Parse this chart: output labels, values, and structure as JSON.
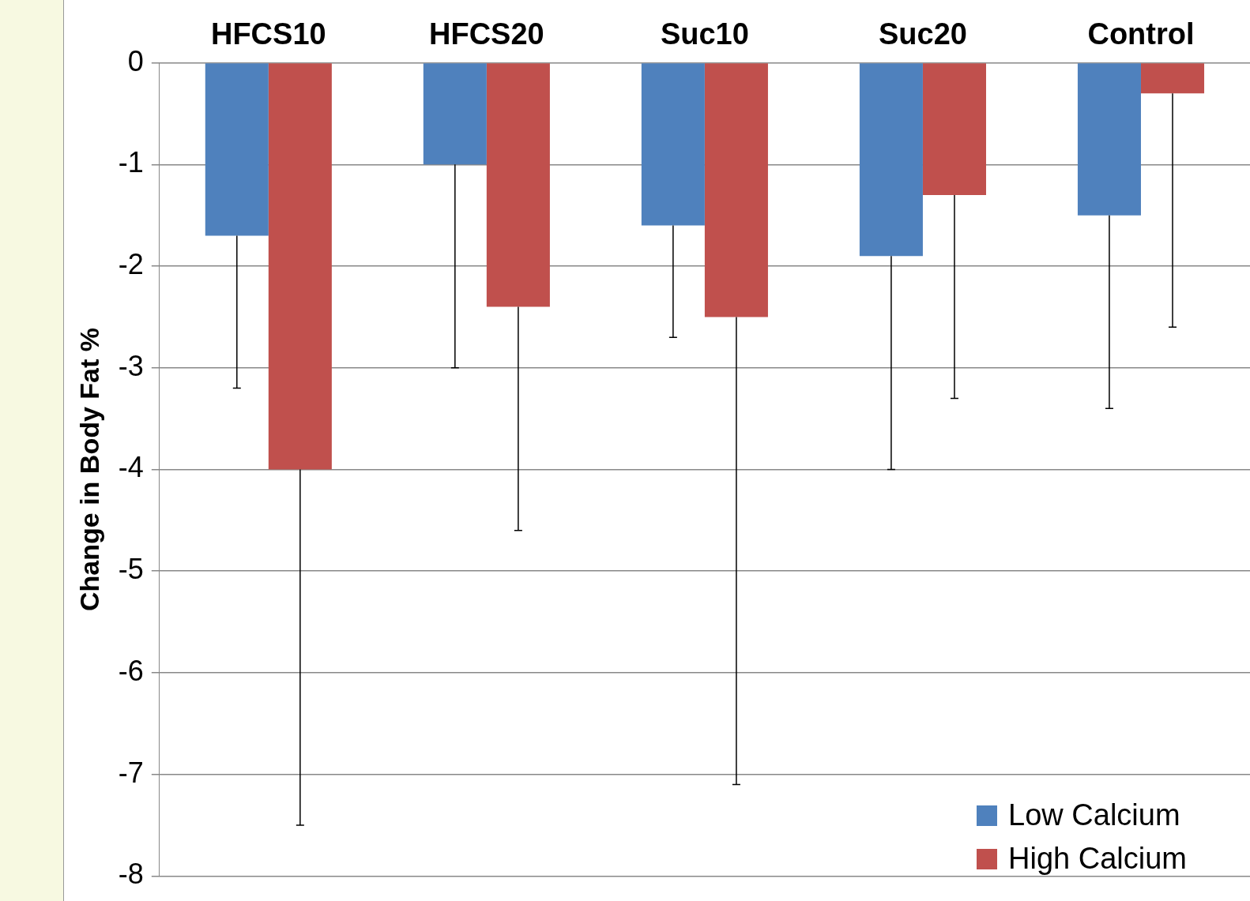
{
  "chart_data": {
    "type": "bar",
    "ylabel": "Change in Body Fat %",
    "categories": [
      "HFCS10",
      "HFCS20",
      "Suc10",
      "Suc20",
      "Control"
    ],
    "series": [
      {
        "name": "Low Calcium",
        "color": "#4f81bd",
        "values": [
          -1.7,
          -1.0,
          -1.6,
          -1.9,
          -1.5
        ],
        "errors": [
          [
            -3.2,
            -1.7
          ],
          [
            -3.0,
            -1.0
          ],
          [
            -2.7,
            -1.6
          ],
          [
            -4.0,
            -1.9
          ],
          [
            -3.4,
            -1.5
          ]
        ]
      },
      {
        "name": "High Calcium",
        "color": "#c0504d",
        "values": [
          -4.0,
          -2.4,
          -2.5,
          -1.3,
          -0.3
        ],
        "errors": [
          [
            -7.5,
            -4.0
          ],
          [
            -4.6,
            -2.4
          ],
          [
            -7.1,
            -2.5
          ],
          [
            -3.3,
            -1.3
          ],
          [
            -2.6,
            -0.3
          ]
        ]
      }
    ],
    "ylim": [
      -8,
      0
    ],
    "yticks": [
      0,
      -1,
      -2,
      -3,
      -4,
      -5,
      -6,
      -7,
      -8
    ],
    "grid": "y",
    "legend": "bottom right"
  }
}
